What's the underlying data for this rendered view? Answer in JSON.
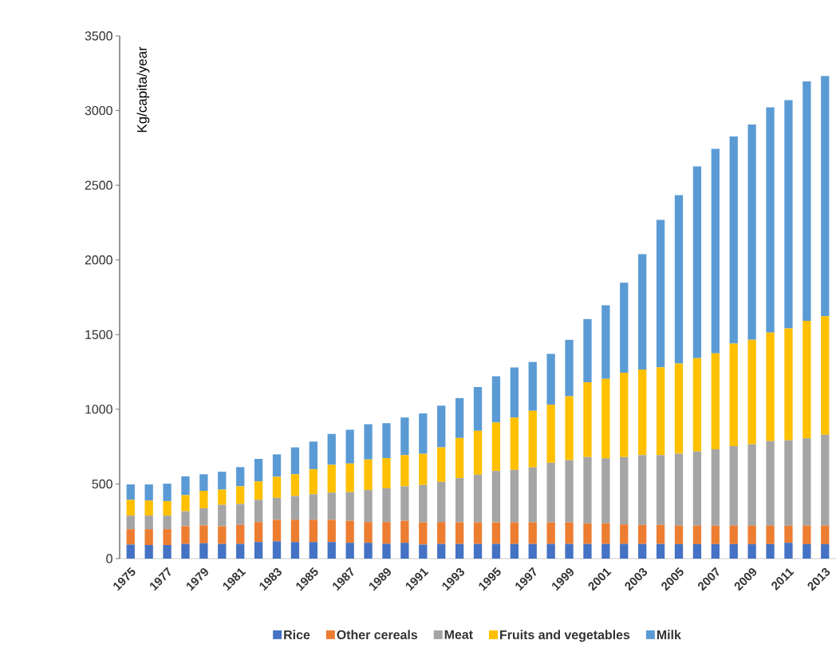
{
  "chart_data": {
    "type": "bar",
    "stacked": true,
    "ylabel": "Kg/capita/year",
    "categories": [
      "1975",
      null,
      "1977",
      null,
      "1979",
      null,
      "1981",
      null,
      "1983",
      null,
      "1985",
      null,
      "1987",
      null,
      "1989",
      null,
      "1991",
      null,
      "1993",
      null,
      "1995",
      null,
      "1997",
      null,
      "1999",
      null,
      "2001",
      null,
      "2003",
      null,
      "2005",
      null,
      "2007",
      null,
      "2009",
      null,
      "2011",
      null,
      "2013"
    ],
    "series": [
      {
        "name": "Rice",
        "color": "#4472c4",
        "values": [
          94,
          91,
          91,
          98,
          103,
          98,
          98,
          111,
          116,
          111,
          111,
          111,
          106,
          106,
          99,
          106,
          94,
          98,
          98,
          98,
          98,
          98,
          98,
          98,
          98,
          98,
          98,
          98,
          98,
          98,
          97,
          97,
          97,
          97,
          97,
          97,
          106,
          97,
          97
        ]
      },
      {
        "name": "Other cereals",
        "color": "#ed7d31",
        "values": [
          103,
          106,
          106,
          119,
          120,
          119,
          128,
          134,
          144,
          149,
          149,
          149,
          147,
          139,
          146,
          147,
          149,
          147,
          145,
          145,
          145,
          145,
          145,
          145,
          145,
          138,
          138,
          131,
          128,
          128,
          124,
          124,
          124,
          124,
          124,
          124,
          115,
          124,
          124
        ]
      },
      {
        "name": "Meat",
        "color": "#a5a5a5",
        "values": [
          91,
          91,
          91,
          100,
          114,
          143,
          140,
          149,
          147,
          159,
          171,
          182,
          192,
          214,
          226,
          231,
          250,
          269,
          296,
          319,
          344,
          351,
          368,
          399,
          416,
          444,
          435,
          451,
          467,
          467,
          482,
          497,
          511,
          533,
          545,
          566,
          571,
          585,
          609
        ]
      },
      {
        "name": "Fruits and vegetables",
        "color": "#ffc000",
        "values": [
          106,
          101,
          97,
          108,
          117,
          102,
          118,
          123,
          141,
          146,
          168,
          186,
          192,
          205,
          202,
          209,
          209,
          231,
          269,
          294,
          324,
          351,
          379,
          389,
          428,
          501,
          533,
          565,
          574,
          588,
          603,
          624,
          643,
          686,
          699,
          726,
          749,
          786,
          793
        ]
      },
      {
        "name": "Milk",
        "color": "#5b9bd5",
        "values": [
          103,
          108,
          117,
          126,
          111,
          120,
          129,
          151,
          150,
          180,
          185,
          207,
          226,
          236,
          234,
          252,
          270,
          279,
          267,
          293,
          310,
          335,
          327,
          340,
          378,
          423,
          493,
          603,
          772,
          987,
          1128,
          1284,
          1369,
          1387,
          1442,
          1509,
          1529,
          1603,
          1608
        ]
      }
    ],
    "ylim": [
      0,
      3500
    ],
    "yticks": [
      0,
      500,
      1000,
      1500,
      2000,
      2500,
      3000,
      3500
    ],
    "legend": "bottom"
  }
}
